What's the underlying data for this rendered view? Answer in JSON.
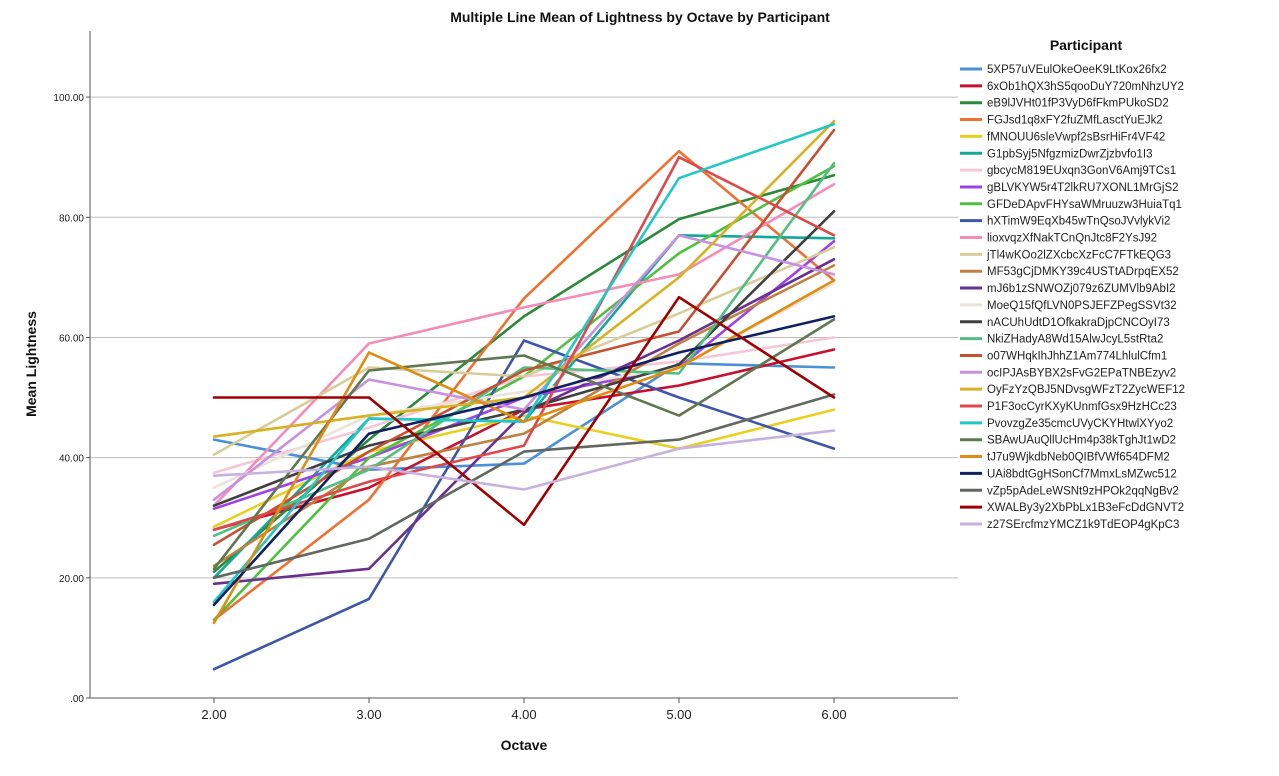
{
  "chart_data": {
    "type": "line",
    "title": "Multiple Line Mean of Lightness by Octave by Participant",
    "xlabel": "Octave",
    "ylabel": "Mean Lightness",
    "x": [
      2,
      3,
      4,
      5,
      6
    ],
    "x_tick_labels": [
      "2.00",
      "3.00",
      "4.00",
      "5.00",
      "6.00"
    ],
    "xlim": [
      1.2,
      6.8
    ],
    "ylim": [
      0,
      111
    ],
    "y_ticks": [
      0,
      20,
      40,
      60,
      80,
      100
    ],
    "y_tick_labels": [
      ".00",
      "20.00",
      "40.00",
      "60.00",
      "80.00",
      "100.00"
    ],
    "grid": "horizontal",
    "legend": {
      "title": "Participant",
      "placement": "right"
    },
    "series": [
      {
        "name": "5XP57uVEulOkeOeeK9LtKox26fx2",
        "color": "#4a90d9",
        "values": [
          43,
          38,
          39,
          55.7,
          55
        ]
      },
      {
        "name": "6xOb1hQX3hS5qooDuY720mNhzUY2",
        "color": "#c8102e",
        "values": [
          28,
          35,
          48,
          52,
          58
        ]
      },
      {
        "name": "eB9lJVHt01fP3VyD6fFkmPUkoSD2",
        "color": "#2a8a3a",
        "values": [
          21,
          43,
          63.5,
          79.7,
          87
        ]
      },
      {
        "name": "FGJsd1q8xFY2fuZMfLasctYuEJk2",
        "color": "#f07030",
        "values": [
          13,
          33,
          66.5,
          91,
          69.5
        ]
      },
      {
        "name": "fMNOUU6sleVwpf2sBsrHiFr4VF42",
        "color": "#e8d020",
        "values": [
          28.5,
          41,
          47,
          41.5,
          48
        ]
      },
      {
        "name": "G1pbSyj5NfgzmizDwrZjzbvfo1I3",
        "color": "#10a898",
        "values": [
          20,
          46.5,
          46,
          77,
          76.5
        ]
      },
      {
        "name": "gbcycM819EUxqn3GonV6Amj9TCs1",
        "color": "#f5c6d6",
        "values": [
          37.5,
          45,
          53.5,
          56,
          60
        ]
      },
      {
        "name": "gBLVKYW5r4T2lkRU7XONL1MrGjS2",
        "color": "#a040e8",
        "values": [
          31.5,
          40,
          50,
          55,
          76
        ]
      },
      {
        "name": "GFDeDApvFHYsaWMruuzw3HuiaTq1",
        "color": "#50c040",
        "values": [
          13,
          40,
          53.5,
          74,
          88.5
        ]
      },
      {
        "name": "hXTimW9EqXb45wTnQsoJVvlykVi2",
        "color": "#3e56a8",
        "values": [
          4.8,
          16.5,
          59.5,
          50,
          41.5
        ]
      },
      {
        "name": "lioxvqzXfNakTCnQnJtc8F2YsJ92",
        "color": "#f48cb8",
        "values": [
          32,
          59,
          65,
          70.5,
          85.5
        ]
      },
      {
        "name": "jTl4wKOo2lZXcbcXzFcC7FTkEQG3",
        "color": "#d8cc98",
        "values": [
          40.5,
          55,
          53.5,
          64,
          75
        ]
      },
      {
        "name": "MF53gCjDMKY39c4USTtADrpqEX52",
        "color": "#c08040",
        "values": [
          22,
          38.5,
          44,
          59,
          72
        ]
      },
      {
        "name": "mJ6b1zSNWOZj079z6ZUMVlb9AbI2",
        "color": "#6a3090",
        "values": [
          19,
          21.5,
          47.5,
          59.5,
          73
        ]
      },
      {
        "name": "MoeQ15fQfLVN0PSJEFZPegSSVt32",
        "color": "#e8e4d8",
        "values": [
          35,
          47,
          51,
          55,
          69
        ]
      },
      {
        "name": "nACUhUdtD1OfkakraDjpCNCOyI73",
        "color": "#404040",
        "values": [
          32,
          42,
          48,
          55.5,
          81
        ]
      },
      {
        "name": "NkiZHadyA8Wd15AlwJcyL5stRta2",
        "color": "#50c080",
        "values": [
          27,
          38,
          55,
          54,
          89
        ]
      },
      {
        "name": "o07WHqkIhJhhZ1Am774LhlulCfm1",
        "color": "#c85030",
        "values": [
          25.5,
          41,
          54.5,
          61,
          94.5
        ]
      },
      {
        "name": "ocIPJAsBYBX2sFvG2EPaTNBEzyv2",
        "color": "#c890e0",
        "values": [
          33,
          53,
          48,
          77,
          70.5
        ]
      },
      {
        "name": "OyFzYzQBJ5NDvsgWFzT2ZycWEF12",
        "color": "#d8b020",
        "values": [
          43.5,
          47,
          50,
          70,
          96
        ]
      },
      {
        "name": "P1F3ocCyrKXyKUnmfGsx9HzHCc23",
        "color": "#e04848",
        "values": [
          28,
          36,
          42,
          90,
          77
        ]
      },
      {
        "name": "PvovzgZe35cmcUVyCKYHtwlXYyo2",
        "color": "#20c8c8",
        "values": [
          16,
          46.5,
          46,
          86.5,
          95.5
        ]
      },
      {
        "name": "SBAwUAuQllUcHm4p38kTghJt1wD2",
        "color": "#607850",
        "values": [
          21.5,
          54.5,
          57,
          47,
          63
        ]
      },
      {
        "name": "tJ7u9WjkdbNeb0QIBfVWf654DFM2",
        "color": "#e08c10",
        "values": [
          12.5,
          57.5,
          46,
          55,
          69.5
        ]
      },
      {
        "name": "UAi8bdtGgHSonCf7MmxLsMZwc512",
        "color": "#102060",
        "values": [
          15.5,
          44,
          50,
          57.5,
          63.5
        ]
      },
      {
        "name": "vZp5pAdeLeWSNt9zHPOk2qqNgBv2",
        "color": "#606860",
        "values": [
          20,
          26.5,
          41,
          43,
          50.5
        ]
      },
      {
        "name": "XWALBy3y2XbPbLx1B3eFcDdGNVT2",
        "color": "#a00000",
        "values": [
          50,
          50,
          28.8,
          66.7,
          50
        ]
      },
      {
        "name": "z27SErcfmzYMCZ1k9TdEOP4gKpC3",
        "color": "#c8b0e0",
        "values": [
          37,
          38.5,
          34.7,
          41.5,
          44.5
        ]
      }
    ]
  }
}
